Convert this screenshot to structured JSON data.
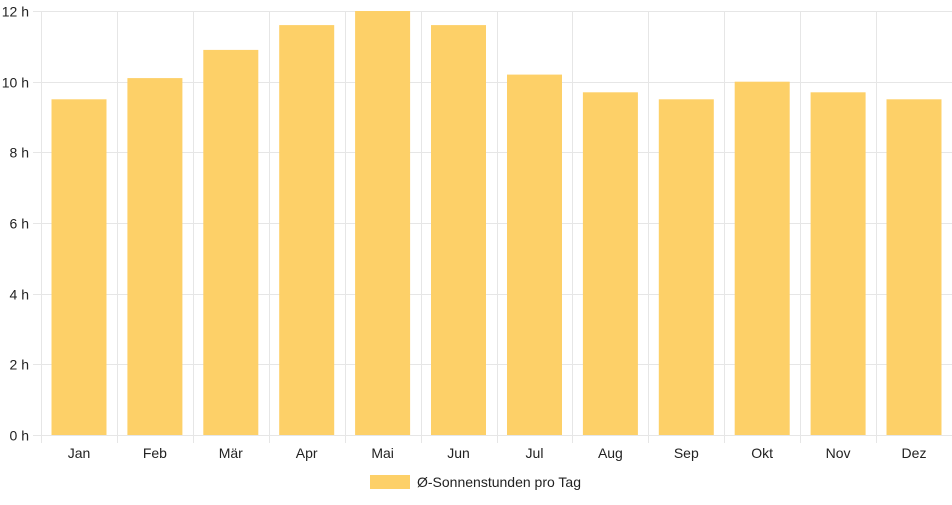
{
  "chart_data": {
    "type": "bar",
    "title": "",
    "xlabel": "",
    "ylabel": "",
    "categories": [
      "Jan",
      "Feb",
      "Mär",
      "Apr",
      "Mai",
      "Jun",
      "Jul",
      "Aug",
      "Sep",
      "Okt",
      "Nov",
      "Dez"
    ],
    "series": [
      {
        "name": "Ø-Sonnenstunden pro Tag",
        "values": [
          9.5,
          10.1,
          10.9,
          11.6,
          12.0,
          11.6,
          10.2,
          9.7,
          9.5,
          10.0,
          9.7,
          9.5
        ],
        "color": "#fdd068"
      }
    ],
    "ylim": [
      0,
      12
    ],
    "yticks": [
      0,
      2,
      4,
      6,
      8,
      10,
      12
    ],
    "ytick_labels": [
      "0 h",
      "2 h",
      "4 h",
      "6 h",
      "8 h",
      "10 h",
      "12 h"
    ],
    "grid": true,
    "legend": {
      "position": "bottom",
      "label": "Ø-Sonnenstunden pro Tag"
    },
    "colors": {
      "bar": "#fdd068",
      "grid": "#e6e6e6",
      "axis_text": "#222222"
    }
  }
}
